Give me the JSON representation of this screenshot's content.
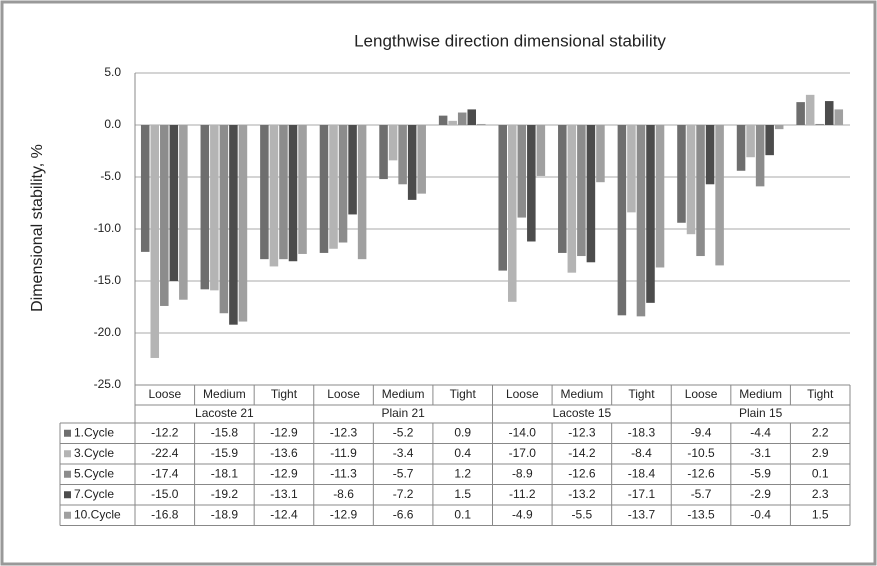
{
  "chart_data": {
    "type": "bar",
    "title": "Lengthwise direction dimensional stability",
    "y_label": "Dimensional stability, %",
    "categories": [
      "Loose",
      "Medium",
      "Tight",
      "Loose",
      "Medium",
      "Tight",
      "Loose",
      "Medium",
      "Tight",
      "Loose",
      "Medium",
      "Tight"
    ],
    "groups": [
      "Lacoste 21",
      "Plain 21",
      "Lacoste 15",
      "Plain 15"
    ],
    "series": [
      {
        "name": "1.Cycle",
        "color": "#6e6e6e",
        "values": [
          -12.2,
          -15.8,
          -12.9,
          -12.3,
          -5.2,
          0.9,
          -14.0,
          -12.3,
          -18.3,
          -9.4,
          -4.4,
          2.2
        ],
        "value_labels": [
          "-12.2",
          "-15.8",
          "-12.9",
          "-12.3",
          "-5.2",
          "0.9",
          "-14.0",
          "-12.3",
          "-18.3",
          "-9.4",
          "-4.4",
          "2.2"
        ]
      },
      {
        "name": "3.Cycle",
        "color": "#b4b4b4",
        "values": [
          -22.4,
          -15.9,
          -13.6,
          -11.9,
          -3.4,
          0.4,
          -17.0,
          -14.2,
          -8.4,
          -10.5,
          -3.1,
          2.9
        ],
        "value_labels": [
          "-22.4",
          "-15.9",
          "-13.6",
          "-11.9",
          "-3.4",
          "0.4",
          "-17.0",
          "-14.2",
          "-8.4",
          "-10.5",
          "-3.1",
          "2.9"
        ]
      },
      {
        "name": "5.Cycle",
        "color": "#8c8c8c",
        "values": [
          -17.4,
          -18.1,
          -12.9,
          -11.3,
          -5.7,
          1.2,
          -8.9,
          -12.6,
          -18.4,
          -12.6,
          -5.9,
          0.1
        ],
        "value_labels": [
          "-17.4",
          "-18.1",
          "-12.9",
          "-11.3",
          "-5.7",
          "1.2",
          "-8.9",
          "-12.6",
          "-18.4",
          "-12.6",
          "-5.9",
          "0.1"
        ]
      },
      {
        "name": "7.Cycle",
        "color": "#4c4c4c",
        "values": [
          -15.0,
          -19.2,
          -13.1,
          -8.6,
          -7.2,
          1.5,
          -11.2,
          -13.2,
          -17.1,
          -5.7,
          -2.9,
          2.3
        ],
        "value_labels": [
          "-15.0",
          "-19.2",
          "-13.1",
          "-8.6",
          "-7.2",
          "1.5",
          "-11.2",
          "-13.2",
          "-17.1",
          "-5.7",
          "-2.9",
          "2.3"
        ]
      },
      {
        "name": "10.Cycle",
        "color": "#a0a0a0",
        "values": [
          -16.8,
          -18.9,
          -12.4,
          -12.9,
          -6.6,
          0.1,
          -4.9,
          -5.5,
          -13.7,
          -13.5,
          -0.4,
          1.5
        ],
        "value_labels": [
          "-16.8",
          "-18.9",
          "-12.4",
          "-12.9",
          "-6.6",
          "0.1",
          "-4.9",
          "-5.5",
          "-13.7",
          "-13.5",
          "-0.4",
          "1.5"
        ]
      }
    ],
    "ylim": [
      -25,
      5
    ],
    "yticks": [
      {
        "value": -25,
        "label": "-25.0"
      },
      {
        "value": -20,
        "label": "-20.0"
      },
      {
        "value": -15,
        "label": "-15.0"
      },
      {
        "value": -10,
        "label": "-10.0"
      },
      {
        "value": -5,
        "label": "-5.0"
      },
      {
        "value": 0,
        "label": "0.0"
      },
      {
        "value": 5,
        "label": "5.0"
      }
    ],
    "grid": true
  }
}
